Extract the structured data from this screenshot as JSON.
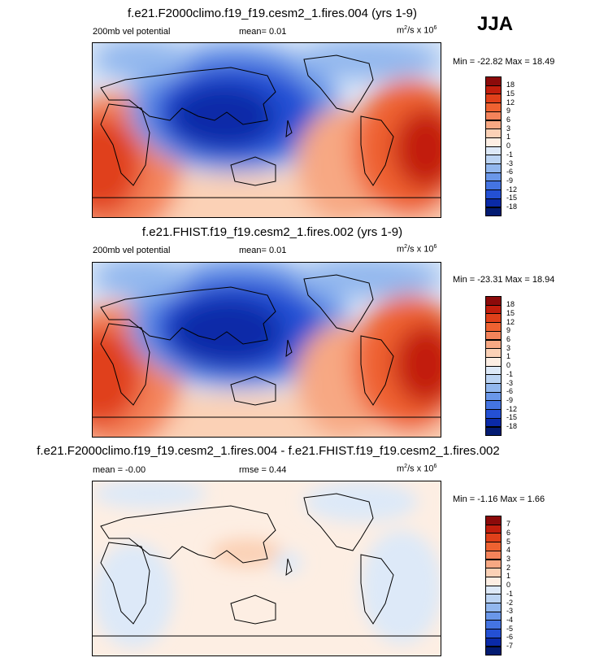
{
  "season": "JJA",
  "panels": [
    {
      "title": "f.e21.F2000climo.f19_f19.cesm2_1.fires.004 (yrs 1-9)",
      "left_label": "200mb vel potential",
      "mid_label": "mean=   0.01",
      "units_base": "m",
      "units_mid": "/s x 10",
      "units_sup1": "2",
      "units_sup2": "6",
      "minmax": "Min = -22.82 Max =  18.49",
      "levels": [
        "18",
        "15",
        "12",
        "9",
        "6",
        "3",
        "1",
        "0",
        "-1",
        "-3",
        "-6",
        "-9",
        "-12",
        "-15",
        "-18"
      ],
      "colors": [
        "#8c0a0a",
        "#c21e0d",
        "#e0401a",
        "#ef6231",
        "#f4835a",
        "#f7a883",
        "#fbd1b6",
        "#fdeee3",
        "#dde9f8",
        "#bcd4f3",
        "#92b7ee",
        "#6a97e9",
        "#4474e2",
        "#2450d4",
        "#0a2aa8",
        "#031b72"
      ]
    },
    {
      "title": "f.e21.FHIST.f19_f19.cesm2_1.fires.002 (yrs 1-9)",
      "left_label": "200mb vel potential",
      "mid_label": "mean=   0.01",
      "units_base": "m",
      "units_mid": "/s x 10",
      "units_sup1": "2",
      "units_sup2": "6",
      "minmax": "Min = -23.31 Max =  18.94",
      "levels": [
        "18",
        "15",
        "12",
        "9",
        "6",
        "3",
        "1",
        "0",
        "-1",
        "-3",
        "-6",
        "-9",
        "-12",
        "-15",
        "-18"
      ],
      "colors": [
        "#8c0a0a",
        "#c21e0d",
        "#e0401a",
        "#ef6231",
        "#f4835a",
        "#f7a883",
        "#fbd1b6",
        "#fdeee3",
        "#dde9f8",
        "#bcd4f3",
        "#92b7ee",
        "#6a97e9",
        "#4474e2",
        "#2450d4",
        "#0a2aa8",
        "#031b72"
      ]
    },
    {
      "title": "f.e21.F2000climo.f19_f19.cesm2_1.fires.004 - f.e21.FHIST.f19_f19.cesm2_1.fires.002",
      "left_label": "mean =  -0.00",
      "mid_label": "rmse =   0.44",
      "units_base": "m",
      "units_mid": "/s x 10",
      "units_sup1": "2",
      "units_sup2": "6",
      "minmax": "Min =  -1.16 Max =   1.66",
      "levels": [
        "7",
        "6",
        "5",
        "4",
        "3",
        "2",
        "1",
        "0",
        "-1",
        "-2",
        "-3",
        "-4",
        "-5",
        "-6",
        "-7"
      ],
      "colors": [
        "#8c0a0a",
        "#c21e0d",
        "#e0401a",
        "#ef6231",
        "#f4835a",
        "#f7a883",
        "#fbd1b6",
        "#fdeee3",
        "#dde9f8",
        "#bcd4f3",
        "#92b7ee",
        "#6a97e9",
        "#4474e2",
        "#2450d4",
        "#0a2aa8",
        "#031b72"
      ]
    }
  ],
  "chart_data": [
    {
      "type": "heatmap",
      "title": "f.e21.F2000climo.f19_f19.cesm2_1.fires.004 (yrs 1-9)",
      "variable": "200mb vel potential",
      "units": "m2/s x 10^6",
      "mean": 0.01,
      "min": -22.82,
      "max": 18.49,
      "contour_levels": [
        -18,
        -15,
        -12,
        -9,
        -6,
        -3,
        -1,
        0,
        1,
        3,
        6,
        9,
        12,
        15,
        18
      ]
    },
    {
      "type": "heatmap",
      "title": "f.e21.FHIST.f19_f19.cesm2_1.fires.002 (yrs 1-9)",
      "variable": "200mb vel potential",
      "units": "m2/s x 10^6",
      "mean": 0.01,
      "min": -23.31,
      "max": 18.94,
      "contour_levels": [
        -18,
        -15,
        -12,
        -9,
        -6,
        -3,
        -1,
        0,
        1,
        3,
        6,
        9,
        12,
        15,
        18
      ]
    },
    {
      "type": "heatmap",
      "title": "f.e21.F2000climo.f19_f19.cesm2_1.fires.004 - f.e21.FHIST.f19_f19.cesm2_1.fires.002",
      "units": "m2/s x 10^6",
      "mean": -0.0,
      "rmse": 0.44,
      "min": -1.16,
      "max": 1.66,
      "contour_levels": [
        -7,
        -6,
        -5,
        -4,
        -3,
        -2,
        -1,
        0,
        1,
        2,
        3,
        4,
        5,
        6,
        7
      ]
    }
  ]
}
